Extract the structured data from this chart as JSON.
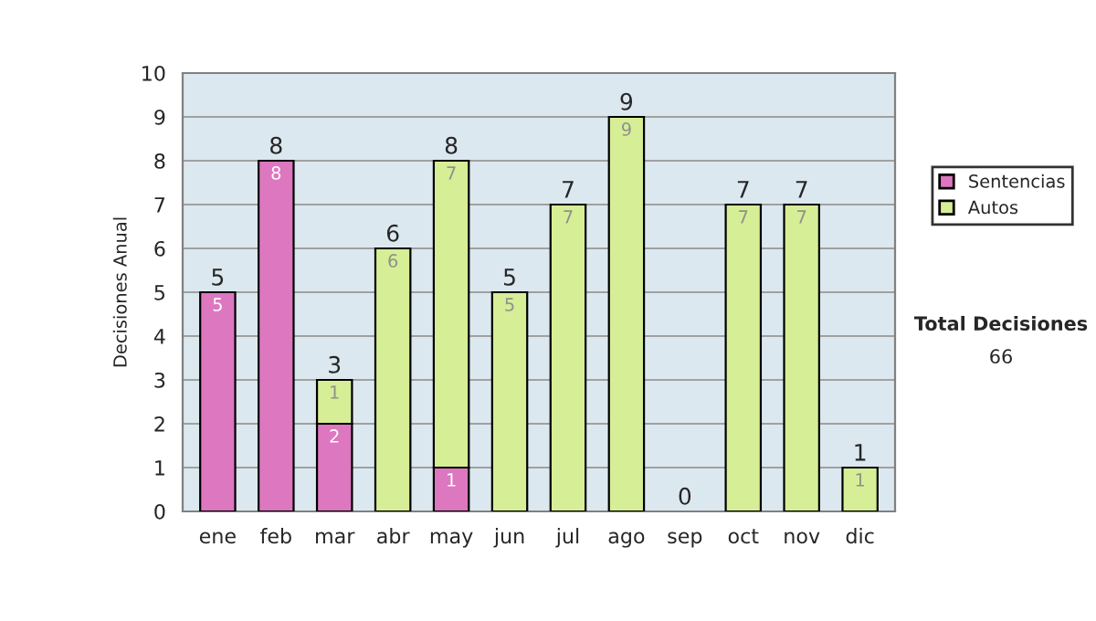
{
  "chart_data": {
    "type": "bar",
    "stacked": true,
    "ylabel": "Decisiones Anual",
    "categories": [
      "ene",
      "feb",
      "mar",
      "abr",
      "may",
      "jun",
      "jul",
      "ago",
      "sep",
      "oct",
      "nov",
      "dic"
    ],
    "series": [
      {
        "name": "Sentencias",
        "color": "#dd77c0",
        "values": [
          5,
          8,
          2,
          null,
          1,
          null,
          null,
          null,
          null,
          null,
          null,
          null
        ],
        "value_labels": [
          "5",
          "8",
          "2",
          null,
          "1",
          null,
          null,
          null,
          null,
          null,
          null,
          null
        ]
      },
      {
        "name": "Autos",
        "color": "#d6ee96",
        "values": [
          null,
          null,
          1,
          6,
          7,
          5,
          7,
          9,
          null,
          7,
          7,
          1
        ],
        "value_labels": [
          null,
          null,
          "1",
          "6",
          "7",
          "5",
          "7",
          "9",
          null,
          "7",
          "7",
          "1"
        ]
      }
    ],
    "totals": [
      "5",
      "8",
      "3",
      "6",
      "8",
      "5",
      "7",
      "9",
      "0",
      "7",
      "7",
      "1"
    ],
    "ylim": [
      0,
      10
    ],
    "yticks": [
      0,
      1,
      2,
      3,
      4,
      5,
      6,
      7,
      8,
      9,
      10
    ],
    "grid": "y",
    "legend": "right",
    "annotations": [
      "Total Decisiones",
      "66"
    ]
  }
}
